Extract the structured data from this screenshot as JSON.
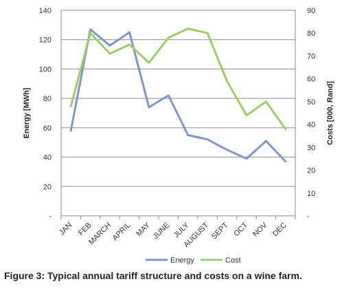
{
  "caption": "Figure 3: Typical annual tariff structure and costs on a wine farm.",
  "chart_data": {
    "type": "line",
    "categories": [
      "JAN",
      "FEB",
      "MARCH",
      "APRIL",
      "MAY",
      "JUNE",
      "JULY",
      "AUGUST",
      "SEPT",
      "OCT",
      "NOV",
      "DEC"
    ],
    "ylabel": "Energy [MWh]",
    "y2label": "Costs [000, Rand]",
    "ylim": [
      0,
      140
    ],
    "y2lim": [
      0,
      90
    ],
    "y_ticks": [
      "-",
      "20",
      "40",
      "60",
      "80",
      "100",
      "120",
      "140"
    ],
    "y2_ticks": [
      "-",
      "10",
      "20",
      "30",
      "40",
      "50",
      "60",
      "70",
      "80",
      "90"
    ],
    "grid": "horizontal",
    "legend_position": "bottom",
    "series": [
      {
        "name": "Energy",
        "axis": "left",
        "color": "#7f96c8",
        "values": [
          58,
          127,
          116,
          125,
          74,
          82,
          55,
          52,
          45,
          39,
          51,
          37
        ]
      },
      {
        "name": "Cost",
        "axis": "right",
        "color": "#9dcc6a",
        "values": [
          48,
          80,
          71,
          75,
          67,
          78,
          82,
          80,
          59,
          44,
          50,
          38
        ]
      }
    ]
  }
}
